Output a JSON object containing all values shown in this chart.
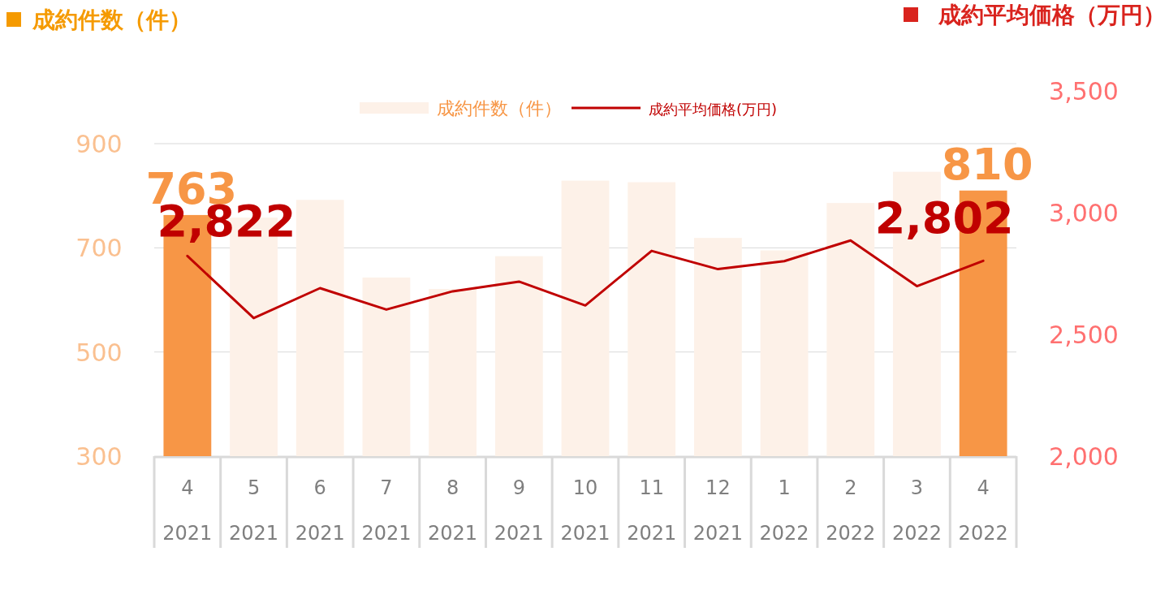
{
  "chart_data": {
    "type": "bar",
    "ylabel": "成約件数（件）",
    "y2label": "成約平均価格（万円）",
    "categories": [
      "4\n2021",
      "5\n2021",
      "6\n2021",
      "7\n2021",
      "8\n2021",
      "9\n2021",
      "10\n2021",
      "11\n2021",
      "12\n2021",
      "1\n2022",
      "2\n2022",
      "3\n2022",
      "4\n2022"
    ],
    "series": [
      {
        "name": "成約件数（件）",
        "color": "#fdf1e8",
        "colors": [
          "#f79646",
          "#fdf1e8",
          "#fdf1e8",
          "#fdf1e8",
          "#fdf1e8",
          "#fdf1e8",
          "#fdf1e8",
          "#fdf1e8",
          "#fdf1e8",
          "#fdf1e8",
          "#fdf1e8",
          "#fdf1e8",
          "#f79646"
        ],
        "values": [
          763,
          758,
          792,
          643,
          621,
          684,
          829,
          826,
          719,
          695,
          786,
          846,
          810
        ],
        "value_labels": [
          "763",
          null,
          null,
          null,
          null,
          null,
          null,
          null,
          null,
          null,
          null,
          null,
          "810"
        ]
      },
      {
        "name": "成約平均価格(万円)",
        "type": "line",
        "axis": "y2",
        "color": "#c00000",
        "values": [
          2822,
          2567,
          2690,
          2602,
          2677,
          2717,
          2619,
          2843,
          2768,
          2801,
          2886,
          2698,
          2802
        ],
        "value_labels": [
          "2,822",
          null,
          null,
          null,
          null,
          null,
          null,
          null,
          null,
          null,
          null,
          null,
          "2,802"
        ]
      }
    ],
    "ylim": [
      300,
      900
    ],
    "yticks": [
      300,
      500,
      700,
      900
    ],
    "y2lim": [
      2000,
      3500
    ],
    "y2ticks": [
      {
        "value": 2000,
        "label": "2,000"
      },
      {
        "value": 2500,
        "label": "2,500"
      },
      {
        "value": 3000,
        "label": "3,000"
      },
      {
        "value": 3500,
        "label": "3,500"
      }
    ],
    "grid": "y",
    "legend": "top",
    "marker": "none",
    "line_style": "solid"
  }
}
